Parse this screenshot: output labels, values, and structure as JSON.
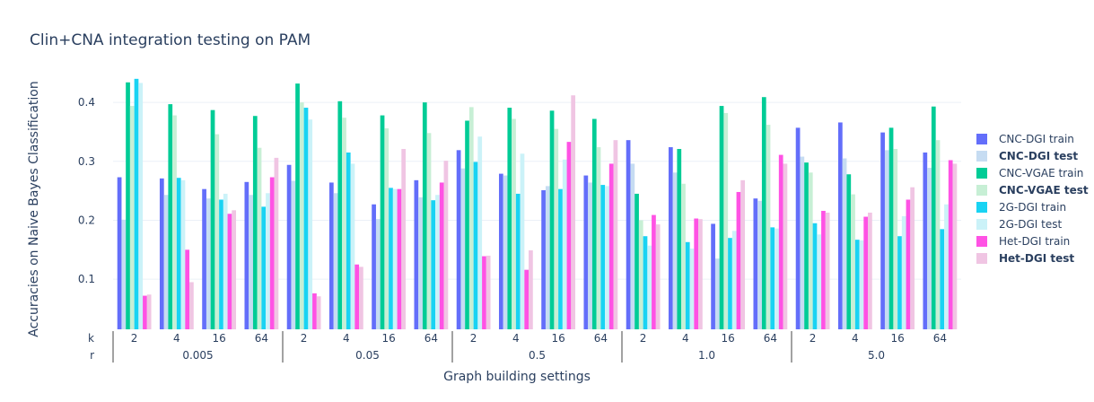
{
  "chart_data": {
    "type": "bar",
    "title": "Clin+CNA integration testing on PAM",
    "xlabel": "Graph building settings",
    "ylabel": "Accuracies on Naive Bayes Classification",
    "ylim": [
      0.015,
      0.455
    ],
    "yticks": [
      0.1,
      0.2,
      0.3,
      0.4
    ],
    "ytick_labels": [
      "0.1",
      "0.2",
      "0.3",
      "0.4"
    ],
    "grid": true,
    "legend_position": "right",
    "multicategory_labels": [
      "k",
      "r"
    ],
    "groups": [
      "0.005",
      "0.05",
      "0.5",
      "1.0",
      "5.0"
    ],
    "k_values": [
      "2",
      "4",
      "16",
      "64"
    ],
    "categories": [
      "0.005 / 2",
      "0.005 / 4",
      "0.005 / 16",
      "0.005 / 64",
      "0.05 / 2",
      "0.05 / 4",
      "0.05 / 16",
      "0.05 / 64",
      "0.5 / 2",
      "0.5 / 4",
      "0.5 / 16",
      "0.5 / 64",
      "1.0 / 2",
      "1.0 / 4",
      "1.0 / 16",
      "1.0 / 64",
      "5.0 / 2",
      "5.0 / 4",
      "5.0 / 16",
      "5.0 / 64"
    ],
    "series": [
      {
        "name": "CNC-DGI train",
        "color": "#636efa",
        "bold": false,
        "values": [
          0.273,
          0.271,
          0.253,
          0.265,
          0.294,
          0.264,
          0.227,
          0.268,
          0.319,
          0.279,
          0.251,
          0.276,
          0.336,
          0.324,
          0.194,
          0.237,
          0.357,
          0.366,
          0.349,
          0.315
        ]
      },
      {
        "name": "CNC-DGI test",
        "color": "#c6dcf2",
        "bold": true,
        "values": [
          0.201,
          0.243,
          0.237,
          0.243,
          0.267,
          0.246,
          0.202,
          0.239,
          0.288,
          0.276,
          0.258,
          0.264,
          0.296,
          0.281,
          0.135,
          0.233,
          0.308,
          0.305,
          0.319,
          0.289
        ]
      },
      {
        "name": "CNC-VGAE train",
        "color": "#00cc96",
        "bold": false,
        "values": [
          0.434,
          0.397,
          0.387,
          0.377,
          0.432,
          0.402,
          0.378,
          0.4,
          0.369,
          0.391,
          0.386,
          0.372,
          0.245,
          0.321,
          0.394,
          0.409,
          0.298,
          0.278,
          0.357,
          0.393
        ]
      },
      {
        "name": "CNC-VGAE test",
        "color": "#c7efd5",
        "bold": true,
        "values": [
          0.394,
          0.378,
          0.346,
          0.323,
          0.4,
          0.374,
          0.356,
          0.348,
          0.392,
          0.372,
          0.355,
          0.324,
          0.2,
          0.262,
          0.382,
          0.362,
          0.281,
          0.244,
          0.321,
          0.336
        ]
      },
      {
        "name": "2G-DGI train",
        "color": "#19d3f3",
        "bold": false,
        "values": [
          0.44,
          0.272,
          0.235,
          0.223,
          0.391,
          0.315,
          0.255,
          0.234,
          0.299,
          0.245,
          0.253,
          0.26,
          0.173,
          0.163,
          0.17,
          0.188,
          0.195,
          0.167,
          0.173,
          0.185
        ]
      },
      {
        "name": "2G-DGI test",
        "color": "#cbf2f8",
        "bold": false,
        "values": [
          0.433,
          0.268,
          0.245,
          0.246,
          0.371,
          0.296,
          0.253,
          0.243,
          0.342,
          0.313,
          0.303,
          0.258,
          0.157,
          0.152,
          0.182,
          0.186,
          0.176,
          0.166,
          0.207,
          0.227
        ]
      },
      {
        "name": "Het-DGI train",
        "color": "#ff52e4",
        "bold": false,
        "values": [
          0.072,
          0.15,
          0.211,
          0.273,
          0.076,
          0.125,
          0.253,
          0.264,
          0.139,
          0.116,
          0.333,
          0.296,
          0.209,
          0.203,
          0.248,
          0.311,
          0.216,
          0.206,
          0.235,
          0.302
        ]
      },
      {
        "name": "Het-DGI test",
        "color": "#f0c5e3",
        "bold": true,
        "values": [
          0.074,
          0.095,
          0.217,
          0.306,
          0.071,
          0.121,
          0.321,
          0.301,
          0.14,
          0.149,
          0.412,
          0.336,
          0.193,
          0.202,
          0.268,
          0.296,
          0.213,
          0.213,
          0.256,
          0.296
        ]
      }
    ]
  }
}
